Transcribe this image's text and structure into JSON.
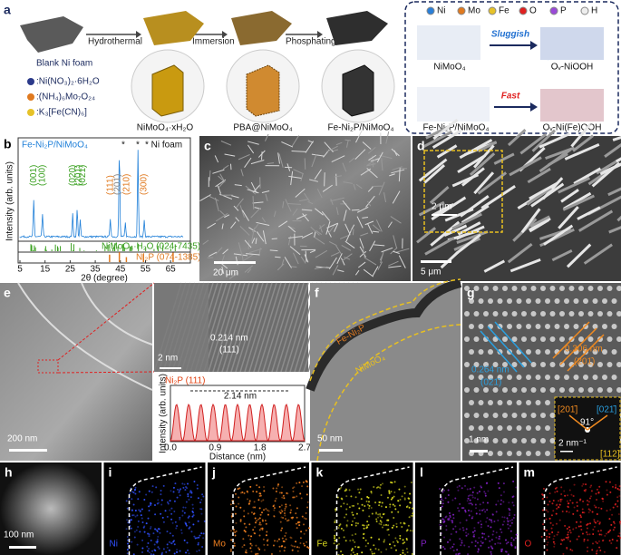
{
  "panel_a": {
    "label": "a",
    "foam": "Blank Ni foam",
    "steps": [
      "Hydrothermal",
      "Immersion",
      "Phosphating"
    ],
    "reagents": [
      ":Ni(NO₃)₂·6H₂O",
      ":(NH₄)₆Mo₇O₂₄",
      ":K₃[Fe(CN)₆]"
    ],
    "products": [
      "NiMoO₄·xH₂O",
      "PBA@NiMoO₄",
      "Fe-Ni₂P/NiMoO₄"
    ],
    "elements": [
      "Ni",
      "Mo",
      "Fe",
      "O",
      "P",
      "H"
    ],
    "slow": "Sluggish",
    "fast": "Fast",
    "structures": [
      "NiMoO₄",
      "Oᵥ-NiOOH",
      "Fe-Ni₂P/NiMoO₄",
      "Oᵥ-Ni(Fe)OOH"
    ]
  },
  "panel_b": {
    "label": "b",
    "sample": "Fe-Ni₂P/NiMoO₄",
    "marks": [
      "*",
      "*"
    ],
    "foam": "* Ni foam",
    "peaks": [
      "(001)",
      "(100)",
      "(020)",
      "(201̄)",
      "(021̄)",
      "(111)",
      "(201)",
      "(210)",
      "(300)"
    ],
    "ref1": "NiMoO₄·H₂O (024-7435)",
    "ref2": "Ni₂P (074-1385)",
    "ylabel": "Intensity (arb. units)",
    "xlabel": "2θ (degree)",
    "xlim": [
      5,
      70
    ],
    "xticks": [
      5,
      15,
      25,
      35,
      45,
      55,
      65
    ]
  },
  "panel_c": {
    "label": "c",
    "scale": "20 μm"
  },
  "panel_d": {
    "label": "d",
    "scale": "5 μm",
    "inset_scale": "2 μm"
  },
  "panel_e": {
    "label": "e",
    "scale": "200 nm",
    "inset_scale": "2 nm",
    "spacing": "0.214 nm",
    "plane": "(111)",
    "profile": {
      "title": "Ni₂P (111)",
      "period": "2.14 nm",
      "ylabel": "Intensity (arb. units)",
      "xlabel": "Distance (nm)",
      "xlim": [
        0,
        2.7
      ],
      "xticks": [
        {
          "value": 0,
          "label": "0.0"
        },
        {
          "value": 0.9,
          "label": "0.9"
        },
        {
          "value": 1.8,
          "label": "1.8"
        },
        {
          "value": 2.7,
          "label": "2.7"
        }
      ]
    }
  },
  "panel_f": {
    "label": "f",
    "phase1": "Fe-Ni₂P",
    "phase2": "NiMoO₄",
    "scale": "50 nm"
  },
  "panel_g": {
    "label": "g",
    "spacing1": "0.264 nm",
    "plane1": "(021̄)",
    "spacing2": "0.306 nm",
    "plane2": "(201̄)",
    "fft": [
      "[201̄]",
      "[021̄]",
      "91°",
      "[112]"
    ],
    "fft_scale": "2 nm⁻¹",
    "scale": "1 nm"
  },
  "maps": {
    "scale": "100 nm",
    "panels": [
      {
        "label": "h"
      },
      {
        "label": "i",
        "element": "Ni"
      },
      {
        "label": "j",
        "element": "Mo"
      },
      {
        "label": "k",
        "element": "Fe"
      },
      {
        "label": "l",
        "element": "P"
      },
      {
        "label": "m",
        "element": "O"
      }
    ]
  }
}
